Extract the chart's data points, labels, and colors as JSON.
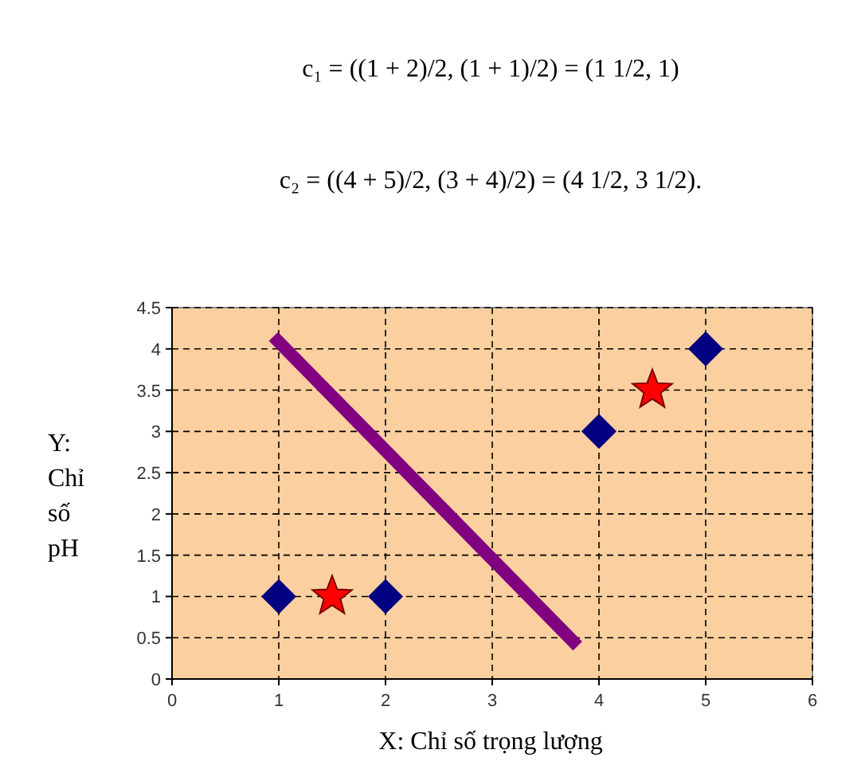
{
  "chart_data": {
    "type": "scatter",
    "annotations": [
      "c₁ = ((1 + 2)/2, (1 + 1)/2) = (1 1/2, 1)",
      "c₂ = ((4 + 5)/2, (3 + 4)/2) = (4 1/2, 3 1/2)."
    ],
    "xlabel": "X: Chỉ số trọng lượng",
    "ylabel": "Y:\nChỉ\nsố\npH",
    "xlim": [
      0,
      6
    ],
    "xticks": [
      0,
      1,
      2,
      3,
      4,
      5,
      6
    ],
    "ylim": [
      0,
      4.5
    ],
    "yticks": [
      0,
      0.5,
      1,
      1.5,
      2,
      2.5,
      3,
      3.5,
      4,
      4.5
    ],
    "grid": true,
    "series": [
      {
        "color": "#000080",
        "marker": "diamond",
        "x": [
          1,
          2,
          4,
          5
        ],
        "values": [
          1,
          1,
          3,
          4
        ]
      },
      {
        "color": "#ff0000",
        "marker": "star",
        "x": [
          1.5,
          4.5
        ],
        "values": [
          1,
          3.5
        ]
      },
      {
        "type": "line",
        "color": "#800080",
        "marker": "none",
        "x": [
          0.95,
          3.8
        ],
        "values": [
          4.15,
          0.4
        ]
      }
    ]
  }
}
